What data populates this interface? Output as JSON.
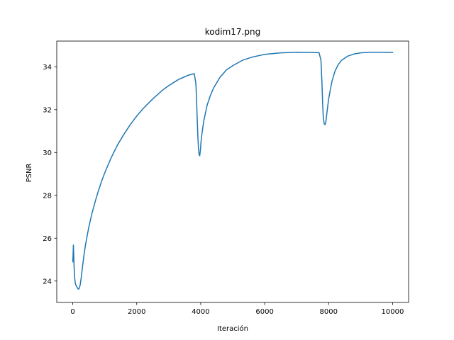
{
  "chart_data": {
    "type": "line",
    "title": "kodim17.png",
    "xlabel": "Iteración",
    "ylabel": "PSNR",
    "xlim": [
      -500,
      10500
    ],
    "ylim": [
      23.0,
      35.2
    ],
    "xticks": [
      0,
      2000,
      4000,
      6000,
      8000,
      10000
    ],
    "yticks": [
      24,
      26,
      28,
      30,
      32,
      34
    ],
    "grid": false,
    "legend": "none",
    "series": [
      {
        "color": "#1f77b4",
        "x": [
          0,
          10,
          20,
          30,
          40,
          60,
          80,
          100,
          130,
          160,
          180,
          200,
          230,
          260,
          300,
          350,
          400,
          450,
          500,
          600,
          700,
          800,
          900,
          1000,
          1200,
          1400,
          1600,
          1800,
          2000,
          2200,
          2500,
          2800,
          3000,
          3300,
          3600,
          3800,
          3850,
          3870,
          3890,
          3910,
          3930,
          3950,
          3970,
          3990,
          4010,
          4050,
          4100,
          4200,
          4300,
          4400,
          4600,
          4800,
          5000,
          5300,
          5600,
          6000,
          6500,
          7000,
          7400,
          7700,
          7760,
          7790,
          7810,
          7830,
          7860,
          7890,
          7910,
          7950,
          8000,
          8100,
          8200,
          8300,
          8400,
          8600,
          8800,
          9000,
          9300,
          9600,
          10000
        ],
        "y": [
          24.9,
          25.2,
          25.68,
          25.3,
          24.75,
          24.15,
          23.9,
          23.8,
          23.72,
          23.65,
          23.62,
          23.65,
          23.8,
          24.1,
          24.6,
          25.2,
          25.7,
          26.1,
          26.5,
          27.15,
          27.7,
          28.2,
          28.65,
          29.05,
          29.75,
          30.35,
          30.85,
          31.3,
          31.7,
          32.05,
          32.5,
          32.9,
          33.12,
          33.4,
          33.6,
          33.68,
          33.2,
          32.5,
          31.6,
          30.8,
          30.2,
          29.9,
          29.85,
          30.1,
          30.5,
          31.0,
          31.5,
          32.2,
          32.65,
          33.0,
          33.5,
          33.85,
          34.05,
          34.3,
          34.45,
          34.58,
          34.65,
          34.68,
          34.67,
          34.66,
          34.3,
          33.3,
          32.4,
          31.7,
          31.35,
          31.3,
          31.4,
          31.9,
          32.5,
          33.3,
          33.8,
          34.1,
          34.3,
          34.5,
          34.6,
          34.65,
          34.68,
          34.68,
          34.67
        ]
      }
    ]
  }
}
